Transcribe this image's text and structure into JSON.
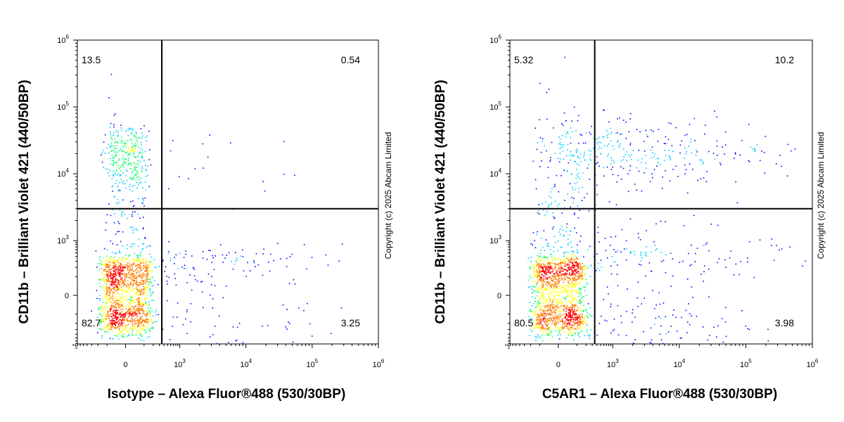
{
  "chart_data": [
    {
      "type": "scatter",
      "plot_style": "flow cytometry pseudocolor density dot plot",
      "xlabel": "Isotype – Alexa Fluor®488 (530/30BP)",
      "ylabel": "CD11b – Brilliant Violet 421 (440/50BP)",
      "x_scale": "biexponential (log above 10^3)",
      "y_scale": "biexponential (log above 10^3)",
      "x_ticks": [
        {
          "base": "0",
          "exp": ""
        },
        {
          "base": "10",
          "exp": "3"
        },
        {
          "base": "10",
          "exp": "4"
        },
        {
          "base": "10",
          "exp": "5"
        },
        {
          "base": "10",
          "exp": "6"
        }
      ],
      "y_ticks": [
        {
          "base": "0",
          "exp": ""
        },
        {
          "base": "10",
          "exp": "3"
        },
        {
          "base": "10",
          "exp": "4"
        },
        {
          "base": "10",
          "exp": "5"
        },
        {
          "base": "10",
          "exp": "6"
        }
      ],
      "quadrant_gate": {
        "x": 350,
        "y": 3000
      },
      "quadrants": [
        {
          "position": "top-left",
          "value": "13.5"
        },
        {
          "position": "top-right",
          "value": "0.54"
        },
        {
          "position": "bottom-left",
          "value": "82.7"
        },
        {
          "position": "bottom-right",
          "value": "3.25"
        }
      ],
      "populations": [
        {
          "x": 0,
          "y": 0,
          "sx": 80,
          "sy": 180,
          "n": 1400
        },
        {
          "x": 0,
          "y": 20000,
          "sx": 60,
          "sy": 0.25,
          "n": 260
        },
        {
          "x": 0,
          "y": 2000,
          "sx": 60,
          "sy": 0.7,
          "n": 160
        },
        {
          "x": 3000,
          "y": 150,
          "sx": 1.0,
          "sy": 350,
          "n": 180
        },
        {
          "x": 2500,
          "y": 15000,
          "sx": 1.0,
          "sy": 0.3,
          "n": 20
        }
      ],
      "copyright": "Copyright (c) 2025 Abcam Limited"
    },
    {
      "type": "scatter",
      "plot_style": "flow cytometry pseudocolor density dot plot",
      "xlabel": "C5AR1 – Alexa Fluor®488 (530/30BP)",
      "ylabel": "CD11b – Brilliant Violet 421 (440/50BP)",
      "x_scale": "biexponential (log above 10^3)",
      "y_scale": "biexponential (log above 10^3)",
      "x_ticks": [
        {
          "base": "0",
          "exp": ""
        },
        {
          "base": "10",
          "exp": "3"
        },
        {
          "base": "10",
          "exp": "4"
        },
        {
          "base": "10",
          "exp": "5"
        },
        {
          "base": "10",
          "exp": "6"
        }
      ],
      "y_ticks": [
        {
          "base": "0",
          "exp": ""
        },
        {
          "base": "10",
          "exp": "3"
        },
        {
          "base": "10",
          "exp": "4"
        },
        {
          "base": "10",
          "exp": "5"
        },
        {
          "base": "10",
          "exp": "6"
        }
      ],
      "quadrant_gate": {
        "x": 350,
        "y": 3000
      },
      "quadrants": [
        {
          "position": "top-left",
          "value": "5.32"
        },
        {
          "position": "top-right",
          "value": "10.2"
        },
        {
          "position": "bottom-left",
          "value": "80.5"
        },
        {
          "position": "bottom-right",
          "value": "3.98"
        }
      ],
      "populations": [
        {
          "x": 0,
          "y": 0,
          "sx": 90,
          "sy": 180,
          "n": 1400
        },
        {
          "x": 0,
          "y": 3000,
          "sx": 80,
          "sy": 0.9,
          "n": 200
        },
        {
          "x": 2000,
          "y": 22000,
          "sx": 1.2,
          "sy": 0.25,
          "n": 300
        },
        {
          "x": 4000,
          "y": 120,
          "sx": 0.9,
          "sy": 380,
          "n": 200
        },
        {
          "x": 2500,
          "y": 1500,
          "sx": 1.0,
          "sy": 0.5,
          "n": 60
        }
      ],
      "copyright": "Copyright (c) 2025 Abcam Limited"
    }
  ],
  "colors": {
    "density_scale": [
      "#0000ff",
      "#00c8ff",
      "#00ff64",
      "#ffff00",
      "#ff8000",
      "#ff0000"
    ],
    "gate_lines": "#000000",
    "axes": "#000000",
    "background": "#ffffff"
  }
}
